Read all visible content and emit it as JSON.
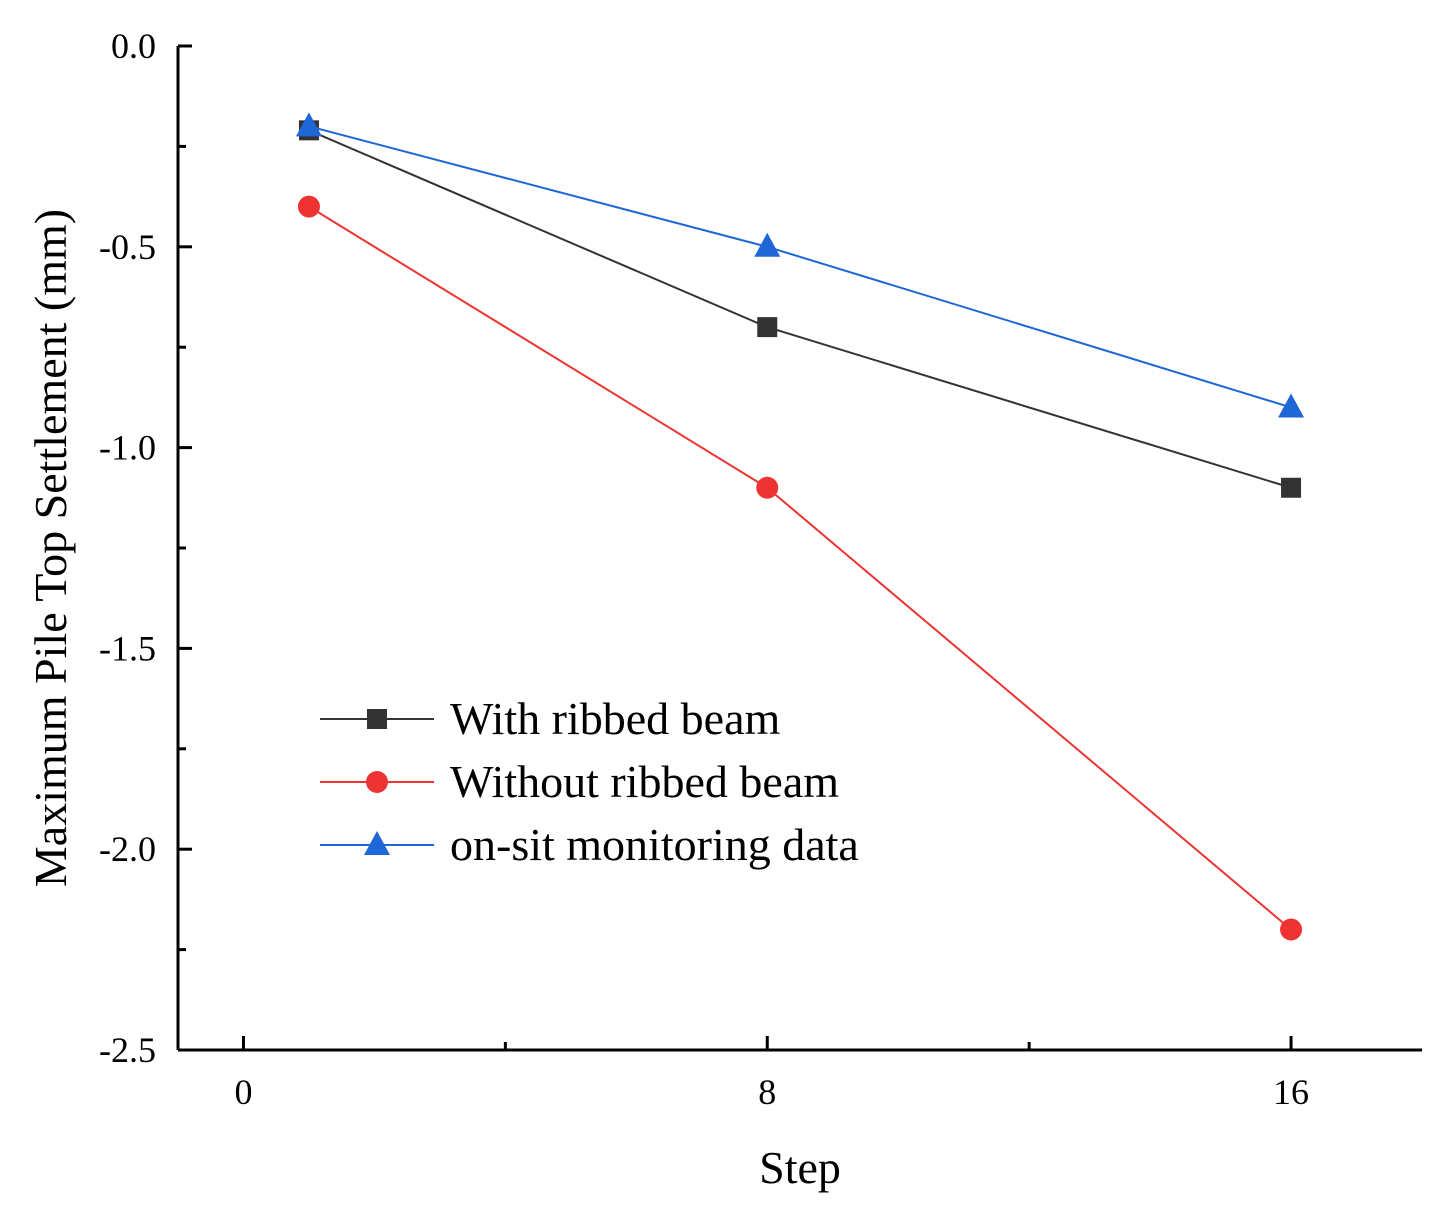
{
  "chart_data": {
    "type": "line",
    "title": "",
    "xlabel": "Step",
    "ylabel": "Maximum Pile Top Settlement (mm)",
    "xlim": [
      -1,
      18
    ],
    "ylim": [
      -2.5,
      0.0
    ],
    "x_ticks": [
      0,
      8,
      16
    ],
    "x_tick_labels": [
      "0",
      "8",
      "16"
    ],
    "x_minor_ticks": [
      4,
      12
    ],
    "y_ticks": [
      0.0,
      -0.5,
      -1.0,
      -1.5,
      -2.0,
      -2.5
    ],
    "y_tick_labels": [
      "0.0",
      "-0.5",
      "-1.0",
      "-1.5",
      "-2.0",
      "-2.5"
    ],
    "y_minor_ticks": [
      -0.25,
      -0.75,
      -1.25,
      -1.75,
      -2.25
    ],
    "grid": false,
    "legend_position": "center-left",
    "series": [
      {
        "name": "With ribbed beam",
        "color": "#333333",
        "marker": "square",
        "x": [
          1,
          8,
          16
        ],
        "values": [
          -0.21,
          -0.7,
          -1.1
        ]
      },
      {
        "name": "Without ribbed beam",
        "color": "#ee3333",
        "marker": "circle",
        "x": [
          1,
          8,
          16
        ],
        "values": [
          -0.4,
          -1.1,
          -2.2
        ]
      },
      {
        "name": "on-sit monitoring data",
        "color": "#1f66d6",
        "marker": "triangle",
        "x": [
          1,
          8,
          16
        ],
        "values": [
          -0.2,
          -0.5,
          -0.9
        ]
      }
    ]
  }
}
